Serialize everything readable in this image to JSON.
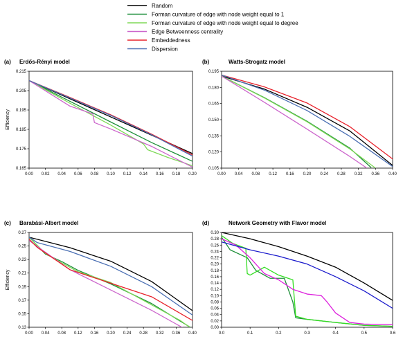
{
  "legend": [
    {
      "label": "Random",
      "color": "#000000"
    },
    {
      "label": "Forman curvature of edge with node weight equal to 1",
      "color": "#1f8f3a"
    },
    {
      "label": "Forman curvature of edge with node weight equal to degree",
      "color": "#7ed957"
    },
    {
      "label": "Edge Betweenness centrality",
      "color": "#cc66cc"
    },
    {
      "label": "Embeddedness",
      "color": "#e8202a"
    },
    {
      "label": "Dispersion",
      "color": "#4a6fb3"
    }
  ],
  "chart_data": [
    {
      "type": "line",
      "letter": "(a)",
      "title": "Erdős-Rényi model",
      "ylabel": "Efficiency",
      "xlabel": "",
      "xlim": [
        0,
        0.2
      ],
      "ylim": [
        0.165,
        0.215
      ],
      "xticks": [
        "0.00",
        "0.02",
        "0.04",
        "0.06",
        "0.08",
        "0.10",
        "0.12",
        "0.14",
        "0.16",
        "0.18",
        "0.20"
      ],
      "yticks": [
        "0.165",
        "0.175",
        "0.185",
        "0.195",
        "0.205",
        "0.215"
      ],
      "series": [
        {
          "color": "#000000",
          "x": [
            0,
            0.05,
            0.1,
            0.15,
            0.2
          ],
          "y": [
            0.2102,
            0.2008,
            0.1914,
            0.182,
            0.1725
          ]
        },
        {
          "color": "#1f8f3a",
          "x": [
            0,
            0.05,
            0.1,
            0.15,
            0.2
          ],
          "y": [
            0.2102,
            0.1995,
            0.1888,
            0.1782,
            0.1685
          ]
        },
        {
          "color": "#7ed957",
          "x": [
            0,
            0.05,
            0.1,
            0.14,
            0.145,
            0.17,
            0.2
          ],
          "y": [
            0.2102,
            0.1985,
            0.1872,
            0.1775,
            0.1745,
            0.1705,
            0.1662
          ]
        },
        {
          "color": "#cc66cc",
          "x": [
            0,
            0.05,
            0.078,
            0.08,
            0.1,
            0.15,
            0.2
          ],
          "y": [
            0.2102,
            0.197,
            0.193,
            0.1885,
            0.1852,
            0.1762,
            0.1655
          ]
        },
        {
          "color": "#e8202a",
          "x": [
            0,
            0.05,
            0.1,
            0.15,
            0.2
          ],
          "y": [
            0.2102,
            0.2015,
            0.1925,
            0.1825,
            0.1718
          ]
        },
        {
          "color": "#4a6fb3",
          "x": [
            0,
            0.05,
            0.1,
            0.15,
            0.2
          ],
          "y": [
            0.2102,
            0.2012,
            0.1922,
            0.1822,
            0.1712
          ]
        }
      ]
    },
    {
      "type": "line",
      "letter": "(b)",
      "title": "Watts-Strogatz model",
      "ylabel": "",
      "xlabel": "",
      "xlim": [
        0,
        0.4
      ],
      "ylim": [
        0.105,
        0.195
      ],
      "xticks": [
        "0.00",
        "0.04",
        "0.08",
        "0.12",
        "0.16",
        "0.20",
        "0.24",
        "0.28",
        "0.32",
        "0.36",
        "0.40"
      ],
      "yticks": [
        "0.105",
        "0.120",
        "0.135",
        "0.150",
        "0.165",
        "0.180",
        "0.195"
      ],
      "series": [
        {
          "color": "#000000",
          "x": [
            0,
            0.1,
            0.2,
            0.3,
            0.4
          ],
          "y": [
            0.1905,
            0.1785,
            0.1615,
            0.1395,
            0.1075
          ]
        },
        {
          "color": "#1f8f3a",
          "x": [
            0,
            0.1,
            0.2,
            0.3,
            0.35
          ],
          "y": [
            0.1905,
            0.1705,
            0.1485,
            0.1235,
            0.1055
          ]
        },
        {
          "color": "#7ed957",
          "x": [
            0,
            0.1,
            0.2,
            0.3,
            0.36
          ],
          "y": [
            0.1905,
            0.1702,
            0.148,
            0.1228,
            0.105
          ]
        },
        {
          "color": "#cc66cc",
          "x": [
            0,
            0.1,
            0.2,
            0.3,
            0.34
          ],
          "y": [
            0.1905,
            0.1662,
            0.1412,
            0.1158,
            0.105
          ]
        },
        {
          "color": "#e8202a",
          "x": [
            0,
            0.1,
            0.2,
            0.3,
            0.4
          ],
          "y": [
            0.1915,
            0.1805,
            0.1655,
            0.1435,
            0.1135
          ]
        },
        {
          "color": "#4a6fb3",
          "x": [
            0,
            0.1,
            0.2,
            0.3,
            0.4
          ],
          "y": [
            0.1915,
            0.1775,
            0.1585,
            0.1345,
            0.1065
          ]
        }
      ]
    },
    {
      "type": "line",
      "letter": "(c)",
      "title": "Barabási-Albert model",
      "ylabel": "Efficiency",
      "xlabel": "Fraction of edges removed",
      "xlim": [
        0,
        0.4
      ],
      "ylim": [
        0.13,
        0.27
      ],
      "xticks": [
        "0.00",
        "0.04",
        "0.08",
        "0.12",
        "0.16",
        "0.20",
        "0.24",
        "0.28",
        "0.32",
        "0.36",
        "0.40"
      ],
      "yticks": [
        "0.13",
        "0.15",
        "0.17",
        "0.19",
        "0.21",
        "0.23",
        "0.25",
        "0.27"
      ],
      "series": [
        {
          "color": "#000000",
          "x": [
            0,
            0.1,
            0.2,
            0.3,
            0.4
          ],
          "y": [
            0.263,
            0.2475,
            0.2275,
            0.1975,
            0.1545
          ]
        },
        {
          "color": "#1f8f3a",
          "x": [
            0,
            0.04,
            0.08,
            0.12,
            0.2,
            0.3,
            0.37,
            0.4
          ],
          "y": [
            0.263,
            0.238,
            0.227,
            0.214,
            0.194,
            0.165,
            0.139,
            0.128
          ]
        },
        {
          "color": "#7ed957",
          "x": [
            0,
            0.04,
            0.08,
            0.12,
            0.2,
            0.3,
            0.37,
            0.4
          ],
          "y": [
            0.263,
            0.239,
            0.225,
            0.212,
            0.196,
            0.163,
            0.14,
            0.127
          ]
        },
        {
          "color": "#cc66cc",
          "x": [
            0,
            0.1,
            0.2,
            0.3,
            0.38
          ],
          "y": [
            0.258,
            0.215,
            0.185,
            0.155,
            0.128
          ]
        },
        {
          "color": "#e8202a",
          "x": [
            0,
            0.02,
            0.1,
            0.2,
            0.3,
            0.4
          ],
          "y": [
            0.26,
            0.248,
            0.215,
            0.195,
            0.175,
            0.14
          ]
        },
        {
          "color": "#4a6fb3",
          "x": [
            0,
            0.02,
            0.1,
            0.2,
            0.3,
            0.4
          ],
          "y": [
            0.263,
            0.255,
            0.242,
            0.22,
            0.19,
            0.148
          ]
        }
      ]
    },
    {
      "type": "line",
      "letter": "(d)",
      "title": "Network Geometry with Flavor model",
      "ylabel": "",
      "xlabel": "Fraction of edges removed",
      "xlim": [
        0,
        0.6
      ],
      "ylim": [
        0,
        0.3
      ],
      "xticks": [
        "0.0",
        "0.1",
        "0.2",
        "0.3",
        "0.4",
        "0.5",
        "0.6"
      ],
      "yticks": [
        "0.00",
        "0.02",
        "0.04",
        "0.06",
        "0.08",
        "0.10",
        "0.12",
        "0.14",
        "0.16",
        "0.18",
        "0.20",
        "0.22",
        "0.24",
        "0.26",
        "0.28",
        "0.30"
      ],
      "series": [
        {
          "color": "#000000",
          "x": [
            0,
            0.1,
            0.2,
            0.3,
            0.4,
            0.5,
            0.6
          ],
          "y": [
            0.3,
            0.28,
            0.255,
            0.225,
            0.19,
            0.14,
            0.085
          ]
        },
        {
          "color": "#1f8f3a",
          "x": [
            0,
            0.03,
            0.09,
            0.12,
            0.17,
            0.22,
            0.25,
            0.26,
            0.3,
            0.4,
            0.5,
            0.6
          ],
          "y": [
            0.285,
            0.245,
            0.22,
            0.18,
            0.155,
            0.155,
            0.08,
            0.03,
            0.025,
            0.015,
            0.006,
            0.003
          ]
        },
        {
          "color": "#33dd22",
          "x": [
            0,
            0.04,
            0.085,
            0.09,
            0.1,
            0.15,
            0.2,
            0.25,
            0.26,
            0.3,
            0.4,
            0.5,
            0.6
          ],
          "y": [
            0.29,
            0.265,
            0.25,
            0.17,
            0.165,
            0.19,
            0.165,
            0.15,
            0.035,
            0.025,
            0.015,
            0.006,
            0.003
          ]
        },
        {
          "color": "#dd22dd",
          "x": [
            0,
            0.05,
            0.1,
            0.15,
            0.2,
            0.25,
            0.3,
            0.35,
            0.37,
            0.4,
            0.45,
            0.5,
            0.6
          ],
          "y": [
            0.28,
            0.26,
            0.22,
            0.17,
            0.15,
            0.12,
            0.105,
            0.1,
            0.08,
            0.045,
            0.015,
            0.01,
            0.008
          ]
        },
        {
          "color": "#1a1acc",
          "x": [
            0,
            0.1,
            0.2,
            0.3,
            0.4,
            0.5,
            0.6
          ],
          "y": [
            0.27,
            0.245,
            0.225,
            0.2,
            0.16,
            0.115,
            0.06
          ]
        }
      ]
    }
  ]
}
